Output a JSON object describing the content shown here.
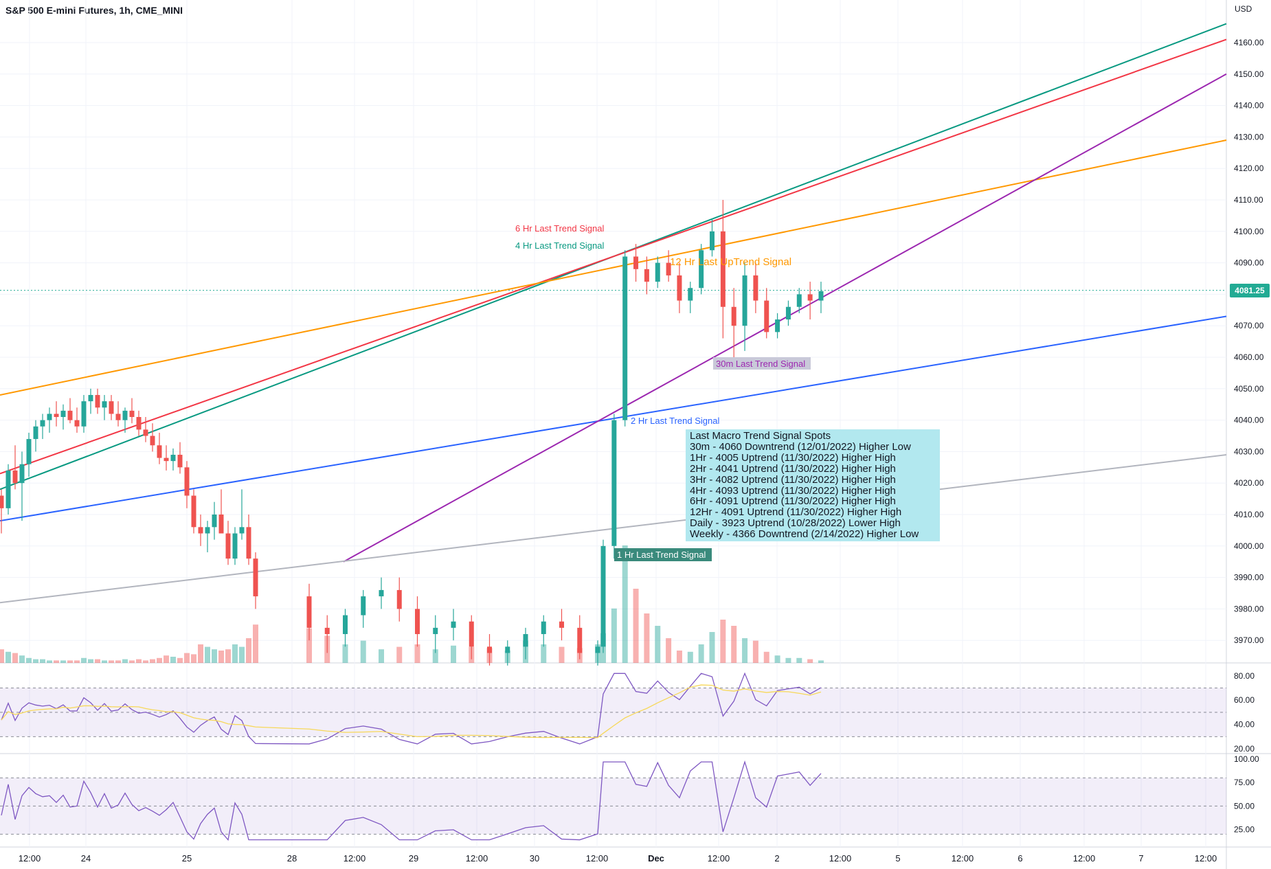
{
  "title": "S&P 500 E-mini Futures, 1h, CME_MINI",
  "currency": "USD",
  "current_price": "4081.25",
  "colors": {
    "up": "#26a69a",
    "down": "#ef5350",
    "line_4hr": "#089981",
    "line_6hr": "#f23645",
    "line_12hr": "#ff9800",
    "line_2hr": "#2962ff",
    "line_30m": "#9c27b0",
    "line_gray": "#b2b5be",
    "rsi": "#7e57c2",
    "rsi_ma": "#f7d858"
  },
  "signal_labels": {
    "hr6": "6 Hr Last Trend Signal",
    "hr4": "4 Hr Last Trend Signal",
    "hr12": "12 Hr Last UpTrend Signal",
    "m30": "30m Last Trend Signal",
    "hr2": "2 Hr Last Trend Signal",
    "hr1": "1 Hr Last Trend Signal"
  },
  "info_box": {
    "title": "Last Macro Trend Signal Spots",
    "lines": [
      "30m - 4060 Downtrend (12/01/2022) Higher Low",
      "1Hr - 4005 Uptrend (11/30/2022) Higher High",
      "2Hr - 4041 Uptrend (11/30/2022) Higher High",
      "3Hr - 4082 Uptrend (11/30/2022) Higher High",
      "4Hr - 4093 Uptrend (11/30/2022) Higher High",
      "6Hr - 4091 Uptrend (11/30/2022) Higher High",
      "12Hr - 4091 Uptrend (11/30/2022) Higher High",
      "Daily - 3923 Uptrend (10/28/2022) Lower High",
      "Weekly - 4366 Downtrend (2/14/2022) Higher Low"
    ]
  },
  "chart_data": {
    "type": "candlestick",
    "y_axis_ticks": [
      "4160.00",
      "4150.00",
      "4140.00",
      "4130.00",
      "4120.00",
      "4110.00",
      "4100.00",
      "4090.00",
      "4080.00",
      "4070.00",
      "4060.00",
      "4050.00",
      "4040.00",
      "4030.00",
      "4020.00",
      "4010.00",
      "4000.00",
      "3990.00",
      "3980.00",
      "3970.00"
    ],
    "ylim": [
      3962,
      4172
    ],
    "x_axis_ticks": [
      "12:00",
      "24",
      "25",
      "28",
      "12:00",
      "29",
      "12:00",
      "30",
      "12:00",
      "Dec",
      "12:00",
      "2",
      "12:00",
      "5",
      "12:00",
      "6",
      "12:00",
      "7",
      "12:00"
    ],
    "ohlc": [
      [
        4016,
        4018,
        4004,
        4012
      ],
      [
        4012,
        4026,
        4010,
        4024
      ],
      [
        4024,
        4032,
        4018,
        4020
      ],
      [
        4020,
        4030,
        4008,
        4026
      ],
      [
        4026,
        4036,
        4022,
        4034
      ],
      [
        4034,
        4040,
        4030,
        4038
      ],
      [
        4038,
        4042,
        4034,
        4040
      ],
      [
        4040,
        4044,
        4036,
        4042
      ],
      [
        4042,
        4046,
        4038,
        4041
      ],
      [
        4041,
        4045,
        4037,
        4043
      ],
      [
        4043,
        4047,
        4039,
        4040
      ],
      [
        4040,
        4044,
        4036,
        4038
      ],
      [
        4038,
        4048,
        4036,
        4046
      ],
      [
        4046,
        4050,
        4042,
        4048
      ],
      [
        4048,
        4050,
        4042,
        4044
      ],
      [
        4044,
        4048,
        4040,
        4046
      ],
      [
        4046,
        4048,
        4040,
        4042
      ],
      [
        4042,
        4046,
        4038,
        4040
      ],
      [
        4040,
        4044,
        4036,
        4043
      ],
      [
        4043,
        4047,
        4039,
        4041
      ],
      [
        4041,
        4043,
        4035,
        4037
      ],
      [
        4037,
        4041,
        4033,
        4035
      ],
      [
        4035,
        4039,
        4030,
        4032
      ],
      [
        4032,
        4036,
        4026,
        4028
      ],
      [
        4028,
        4032,
        4024,
        4027
      ],
      [
        4027,
        4031,
        4024,
        4029
      ],
      [
        4029,
        4033,
        4023,
        4025
      ],
      [
        4025,
        4027,
        4012,
        4016
      ],
      [
        4016,
        4018,
        4004,
        4006
      ],
      [
        4006,
        4010,
        4000,
        4004
      ],
      [
        4004,
        4008,
        3998,
        4006
      ],
      [
        4006,
        4014,
        4002,
        4010
      ],
      [
        4010,
        4018,
        4006,
        4004
      ],
      [
        4004,
        4008,
        3994,
        3996
      ],
      [
        3996,
        4006,
        3994,
        4004
      ],
      [
        4004,
        4018,
        4002,
        4006
      ],
      [
        4006,
        4010,
        3994,
        3996
      ],
      [
        3996,
        3998,
        3980,
        3984
      ],
      [
        3984,
        3988,
        3970,
        3974
      ],
      [
        3974,
        3978,
        3966,
        3972
      ],
      [
        3972,
        3980,
        3968,
        3978
      ],
      [
        3978,
        3986,
        3974,
        3984
      ],
      [
        3984,
        3990,
        3980,
        3986
      ],
      [
        3986,
        3990,
        3976,
        3980
      ],
      [
        3980,
        3984,
        3968,
        3972
      ],
      [
        3972,
        3978,
        3966,
        3974
      ],
      [
        3974,
        3980,
        3970,
        3976
      ],
      [
        3976,
        3978,
        3964,
        3968
      ],
      [
        3968,
        3972,
        3962,
        3966
      ],
      [
        3966,
        3970,
        3962,
        3968
      ],
      [
        3968,
        3974,
        3964,
        3972
      ],
      [
        3972,
        3978,
        3968,
        3976
      ],
      [
        3976,
        3980,
        3970,
        3974
      ],
      [
        3974,
        3978,
        3964,
        3966
      ],
      [
        3966,
        3970,
        3962,
        3968
      ],
      [
        3968,
        4002,
        3966,
        4000
      ],
      [
        4000,
        4042,
        3996,
        4040
      ],
      [
        4040,
        4094,
        4038,
        4092
      ],
      [
        4092,
        4096,
        4084,
        4088
      ],
      [
        4088,
        4092,
        4080,
        4084
      ],
      [
        4084,
        4092,
        4082,
        4090
      ],
      [
        4090,
        4094,
        4084,
        4086
      ],
      [
        4086,
        4090,
        4074,
        4078
      ],
      [
        4078,
        4084,
        4074,
        4082
      ],
      [
        4082,
        4096,
        4080,
        4094
      ],
      [
        4094,
        4104,
        4092,
        4100
      ],
      [
        4100,
        4110,
        4066,
        4076
      ],
      [
        4076,
        4082,
        4058,
        4070
      ],
      [
        4070,
        4090,
        4062,
        4086
      ],
      [
        4086,
        4090,
        4074,
        4078
      ],
      [
        4078,
        4082,
        4066,
        4068
      ],
      [
        4068,
        4074,
        4066,
        4072
      ],
      [
        4072,
        4078,
        4070,
        4076
      ],
      [
        4076,
        4082,
        4074,
        4080
      ],
      [
        4080,
        4084,
        4072,
        4078
      ],
      [
        4078,
        4084,
        4074,
        4081
      ]
    ],
    "volume": [
      22,
      18,
      16,
      12,
      8,
      6,
      6,
      4,
      4,
      4,
      4,
      4,
      8,
      6,
      6,
      4,
      4,
      4,
      6,
      4,
      6,
      4,
      6,
      8,
      12,
      10,
      8,
      16,
      14,
      30,
      26,
      22,
      20,
      22,
      30,
      26,
      40,
      62,
      56,
      44,
      30,
      36,
      22,
      26,
      30,
      22,
      28,
      26,
      24,
      20,
      36,
      30,
      26,
      24,
      30,
      48,
      88,
      190,
      120,
      80,
      60,
      40,
      20,
      18,
      30,
      50,
      70,
      60,
      40,
      36,
      18,
      12,
      8,
      8,
      6,
      4
    ],
    "rsi1": {
      "ylim": [
        20,
        85
      ],
      "ticks": [
        "80.00",
        "60.00",
        "40.00",
        "20.00"
      ],
      "bands": [
        70,
        30
      ],
      "mid": 50
    },
    "rsi2": {
      "ylim": [
        10,
        100
      ],
      "ticks": [
        "100.00",
        "75.00",
        "50.00",
        "25.00"
      ],
      "bands": [
        80,
        20
      ],
      "mid": 50
    }
  }
}
